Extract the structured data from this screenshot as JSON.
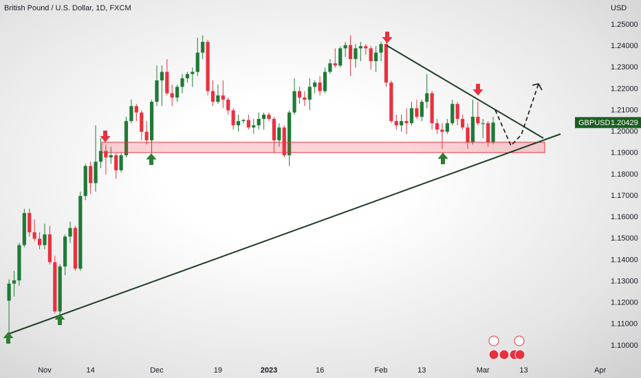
{
  "chart_data": {
    "type": "candlestick",
    "title": "British Pound / U.S. Dollar, 1D, FXCM",
    "currency": "USD",
    "symbol": "GBPUSD",
    "up_color": "#1f7a36",
    "down_color": "#e8313f",
    "grid": false,
    "categories": [
      null,
      null,
      null,
      null,
      null,
      null,
      null,
      "Nov",
      null,
      null,
      null,
      null,
      null,
      null,
      null,
      null,
      "14",
      null,
      null,
      null,
      null,
      null,
      null,
      null,
      null,
      null,
      null,
      null,
      null,
      "Dec",
      null,
      null,
      null,
      null,
      null,
      null,
      null,
      null,
      null,
      null,
      null,
      "19",
      null,
      null,
      null,
      null,
      null,
      null,
      null,
      null,
      null,
      "2023",
      null,
      null,
      null,
      null,
      null,
      null,
      null,
      null,
      null,
      "16",
      null,
      null,
      null,
      null,
      null,
      null,
      null,
      null,
      null,
      null,
      null,
      "Feb",
      null,
      null,
      null,
      null,
      null,
      null,
      null,
      "13",
      null,
      null,
      null,
      null,
      null,
      null,
      null,
      null,
      null,
      null,
      null,
      "Mar",
      null,
      null,
      null,
      null,
      null,
      null,
      null,
      "13",
      null,
      null,
      null,
      null,
      null,
      null,
      null,
      null,
      null,
      null,
      null,
      null,
      null,
      null,
      "Apr"
    ],
    "open": [
      1.121,
      1.129,
      1.1305,
      1.147,
      1.162,
      1.153,
      1.15,
      1.147,
      1.152,
      1.139,
      1.116,
      1.137,
      1.151,
      1.155,
      1.136,
      1.17,
      1.184,
      1.176,
      1.186,
      1.191,
      1.188,
      1.189,
      1.182,
      1.189,
      1.205,
      1.212,
      1.209,
      1.2,
      1.196,
      1.214,
      1.224,
      1.228,
      1.218,
      1.216,
      1.221,
      1.225,
      1.227,
      1.228,
      1.237,
      1.242,
      1.219,
      1.214,
      1.217,
      1.215,
      1.21,
      1.203,
      1.205,
      1.2055,
      1.202,
      1.203,
      1.206,
      1.208,
      1.206,
      1.196,
      1.202,
      1.189,
      1.209,
      1.219,
      1.216,
      1.215,
      1.221,
      1.223,
      1.219,
      1.228,
      1.232,
      1.231,
      1.239,
      1.2405,
      1.234,
      1.239,
      1.24,
      1.239,
      1.233,
      1.237,
      1.241,
      1.223,
      1.205,
      1.203,
      1.205,
      1.204,
      1.211,
      1.207,
      1.214,
      1.218,
      1.204,
      1.201,
      1.2,
      1.204,
      1.213,
      1.206,
      1.202,
      1.195,
      1.207,
      1.204,
      1.204,
      1.195,
      null,
      null,
      null,
      null,
      null,
      null,
      null,
      null,
      null,
      null,
      null,
      null,
      null,
      null,
      null,
      null,
      null,
      null,
      null,
      null,
      null
    ],
    "high": [
      1.131,
      1.135,
      1.148,
      1.164,
      1.164,
      1.159,
      1.153,
      1.157,
      1.156,
      1.142,
      1.138,
      1.152,
      1.158,
      1.156,
      1.172,
      1.185,
      1.186,
      1.203,
      1.197,
      1.194,
      1.193,
      1.19,
      1.19,
      1.207,
      1.215,
      1.213,
      1.21,
      1.205,
      1.215,
      1.231,
      1.231,
      1.234,
      1.222,
      1.222,
      1.227,
      1.228,
      1.23,
      1.244,
      1.245,
      1.243,
      1.224,
      1.222,
      1.224,
      1.216,
      1.211,
      1.208,
      1.206,
      1.208,
      1.206,
      1.209,
      1.209,
      1.209,
      1.207,
      1.204,
      1.203,
      1.21,
      1.225,
      1.221,
      1.219,
      1.225,
      1.224,
      1.226,
      1.23,
      1.234,
      1.239,
      1.24,
      1.242,
      1.245,
      1.241,
      1.242,
      1.241,
      1.24,
      1.24,
      1.242,
      1.242,
      1.224,
      1.208,
      1.208,
      1.211,
      1.214,
      1.215,
      1.215,
      1.227,
      1.219,
      1.206,
      1.204,
      1.206,
      1.215,
      1.214,
      1.208,
      1.204,
      1.215,
      1.214,
      1.206,
      1.205,
      1.207,
      null,
      null,
      null,
      null,
      null,
      null,
      null,
      null,
      null,
      null,
      null,
      null,
      null,
      null,
      null,
      null,
      null,
      null,
      null,
      null,
      null
    ],
    "low": [
      1.106,
      1.123,
      1.128,
      1.146,
      1.151,
      1.149,
      1.145,
      1.145,
      1.138,
      1.115,
      1.115,
      1.133,
      1.148,
      1.135,
      1.135,
      1.168,
      1.171,
      1.172,
      1.183,
      1.18,
      1.185,
      1.178,
      1.181,
      1.188,
      1.204,
      1.205,
      1.196,
      1.194,
      1.19,
      1.212,
      1.212,
      1.217,
      1.212,
      1.214,
      1.218,
      1.223,
      1.221,
      1.226,
      1.234,
      1.217,
      1.212,
      1.213,
      1.211,
      1.208,
      1.201,
      1.2,
      1.204,
      1.201,
      1.199,
      1.201,
      1.201,
      1.205,
      1.19,
      1.193,
      1.188,
      1.184,
      1.208,
      1.213,
      1.212,
      1.21,
      1.218,
      1.217,
      1.218,
      1.227,
      1.23,
      1.23,
      1.235,
      1.226,
      1.23,
      1.233,
      1.236,
      1.229,
      1.228,
      1.233,
      1.221,
      1.204,
      1.201,
      1.2,
      1.199,
      1.203,
      1.206,
      1.205,
      1.211,
      1.201,
      1.199,
      1.192,
      1.199,
      1.203,
      1.203,
      1.201,
      1.192,
      1.194,
      1.203,
      1.197,
      1.193,
      1.194,
      null,
      null,
      null,
      null,
      null,
      null,
      null,
      null,
      null,
      null,
      null,
      null,
      null,
      null,
      null,
      null,
      null,
      null,
      null,
      null,
      null
    ],
    "close": [
      1.129,
      1.1305,
      1.147,
      1.162,
      1.153,
      1.15,
      1.147,
      1.152,
      1.139,
      1.116,
      1.137,
      1.151,
      1.155,
      1.136,
      1.17,
      1.184,
      1.176,
      1.186,
      1.191,
      1.188,
      1.189,
      1.182,
      1.189,
      1.205,
      1.212,
      1.209,
      1.2,
      1.196,
      1.214,
      1.224,
      1.228,
      1.218,
      1.216,
      1.221,
      1.225,
      1.227,
      1.228,
      1.237,
      1.242,
      1.219,
      1.214,
      1.217,
      1.215,
      1.21,
      1.203,
      1.205,
      1.2055,
      1.202,
      1.203,
      1.206,
      1.208,
      1.206,
      1.196,
      1.202,
      1.189,
      1.209,
      1.219,
      1.216,
      1.215,
      1.221,
      1.223,
      1.219,
      1.228,
      1.232,
      1.231,
      1.239,
      1.2405,
      1.234,
      1.239,
      1.24,
      1.239,
      1.233,
      1.237,
      1.241,
      1.223,
      1.205,
      1.203,
      1.205,
      1.204,
      1.211,
      1.207,
      1.214,
      1.218,
      1.204,
      1.201,
      1.2,
      1.204,
      1.213,
      1.206,
      1.202,
      1.195,
      1.207,
      1.204,
      1.204,
      1.195,
      1.20429,
      null,
      null,
      null,
      null,
      null,
      null,
      null,
      null,
      null,
      null,
      null,
      null,
      null,
      null,
      null,
      null,
      null,
      null,
      null,
      null,
      null
    ],
    "ylim": [
      1.0929,
      1.2616
    ],
    "yticks": [
      {
        "value": 1.1,
        "label": "1.10000"
      },
      {
        "value": 1.11,
        "label": "1.11000"
      },
      {
        "value": 1.12,
        "label": "1.12000"
      },
      {
        "value": 1.13,
        "label": "1.13000"
      },
      {
        "value": 1.14,
        "label": "1.14000"
      },
      {
        "value": 1.15,
        "label": "1.15000"
      },
      {
        "value": 1.16,
        "label": "1.16000"
      },
      {
        "value": 1.17,
        "label": "1.17000"
      },
      {
        "value": 1.18,
        "label": "1.18000"
      },
      {
        "value": 1.19,
        "label": "1.19000"
      },
      {
        "value": 1.2,
        "label": "1.20000"
      },
      {
        "value": 1.21,
        "label": "1.21000"
      },
      {
        "value": 1.22,
        "label": "1.22000"
      },
      {
        "value": 1.23,
        "label": "1.23000"
      },
      {
        "value": 1.24,
        "label": "1.24000"
      },
      {
        "value": 1.25,
        "label": "1.25000"
      }
    ]
  }
}
